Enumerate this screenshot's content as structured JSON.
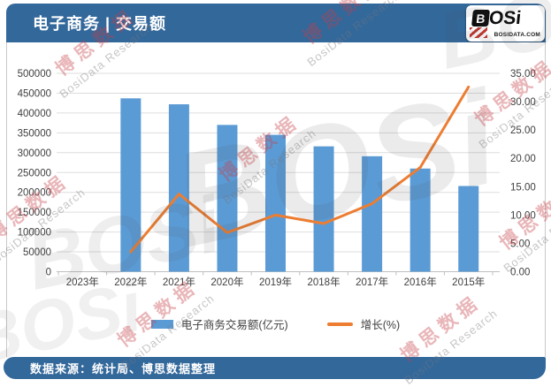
{
  "header": {
    "title": "电子商务 | 交易额",
    "logo": {
      "b": "B",
      "rest": "OSi",
      "domain": "BOSIDATA.COM"
    }
  },
  "footer": {
    "source": "数据来源：统计局、博思数据整理"
  },
  "watermark": {
    "cn": "博思数据",
    "en": "BosiData Research",
    "logo": "BOSi"
  },
  "colors": {
    "header_bg": "#33689B",
    "footer_bg": "#33689B",
    "bar": "#5B9BD5",
    "line": "#ED7D31",
    "grid": "#DDDDDD",
    "baseline": "#BFBFBF",
    "axis_text": "#404040",
    "logo_red": "#C3372E"
  },
  "chart_data": {
    "type": "combo",
    "title": "电子商务 | 交易额",
    "categories": [
      "2023年",
      "2022年",
      "2021年",
      "2020年",
      "2019年",
      "2018年",
      "2017年",
      "2016年",
      "2015年"
    ],
    "series": [
      {
        "name": "电子商务交易额(亿元)",
        "type": "bar",
        "axis": "left",
        "color": "#5B9BD5",
        "values": [
          null,
          437000,
          422000,
          370000,
          345000,
          316000,
          291000,
          260000,
          216000
        ]
      },
      {
        "name": "增长(%)",
        "type": "line",
        "axis": "right",
        "color": "#ED7D31",
        "values": [
          null,
          3.5,
          13.7,
          6.9,
          10.0,
          8.5,
          12.0,
          18.4,
          32.6
        ]
      }
    ],
    "left_axis": {
      "min": 0,
      "max": 500000,
      "step": 50000,
      "format": "integer"
    },
    "right_axis": {
      "min": 0,
      "max": 35,
      "step": 5,
      "format": "0.00"
    },
    "grid": true,
    "legend_position": "bottom",
    "x_axis_reversed_years": true
  }
}
